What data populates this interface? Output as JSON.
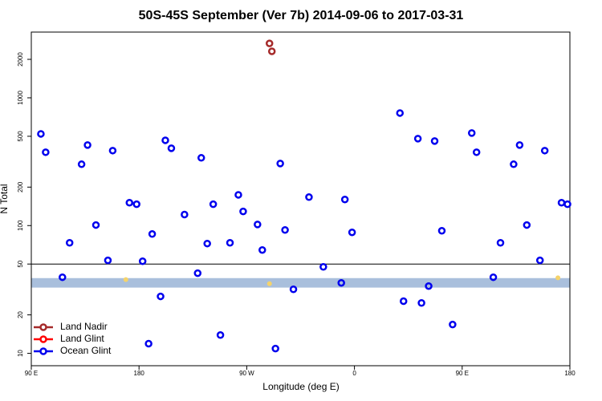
{
  "chart_data": {
    "type": "scatter",
    "title": "50S-45S September (Ver 7b)   2014-09-06 to 2017-03-31",
    "x_label": "Longitude (deg E)",
    "y_label": "N Total",
    "log_y": true,
    "xlim": [
      90,
      540
    ],
    "ylim": [
      8,
      3270
    ],
    "xticks": [
      {
        "value": 90,
        "label": "90 E"
      },
      180,
      {
        "value": 270,
        "label": "90 W"
      },
      {
        "value": 360,
        "label": "0"
      },
      {
        "value": 450,
        "label": "90 E"
      },
      {
        "value": 540,
        "label": "180"
      }
    ],
    "yticks": [
      10,
      20,
      50,
      100,
      200,
      500,
      1000,
      2000
    ],
    "hline": 50,
    "band": [
      32.7,
      38.8
    ],
    "band_color": "#a9bfdc",
    "legend": "bottom-left",
    "series": [
      {
        "name": "Land Nadir",
        "color": "#a52a2a",
        "x": [
          289,
          291
        ],
        "values": [
          2667,
          2312
        ]
      },
      {
        "name": "Land Glint",
        "color": "#ff0000",
        "x": [],
        "values": []
      },
      {
        "name": "Ocean Glint",
        "color": "#0000ee",
        "x": [
          98,
          102,
          116,
          122,
          132,
          137,
          144,
          154,
          158,
          172,
          178,
          183,
          188,
          191,
          198,
          202,
          207,
          218,
          229,
          232,
          237,
          242,
          248,
          256,
          263,
          267,
          279,
          283,
          294,
          298,
          302,
          309,
          322,
          334,
          349,
          352,
          358,
          398,
          401,
          413,
          416,
          422,
          427,
          433,
          442,
          458,
          462,
          476,
          482,
          493,
          498,
          504,
          515,
          519,
          533,
          538
        ],
        "values": [
          522,
          375,
          39.4,
          73.3,
          302,
          427,
          101,
          53.4,
          386,
          151,
          147,
          52.6,
          11.9,
          85.9,
          27.9,
          465,
          403,
          122,
          42.4,
          339,
          72.3,
          147,
          13.9,
          73.3,
          174,
          129,
          102,
          64.4,
          10.9,
          306,
          92.4,
          31.7,
          167,
          47.5,
          35.6,
          160,
          88.5,
          760,
          25.6,
          479,
          24.8,
          33.6,
          459,
          91,
          16.8,
          530,
          375,
          39.4,
          73.3,
          302,
          427,
          101,
          53.4,
          386,
          151,
          147
        ]
      }
    ],
    "highlights": {
      "color": "#f5d36b",
      "x": [
        169,
        289,
        530
      ],
      "values": [
        37.8,
        35.1,
        39.0
      ]
    }
  }
}
